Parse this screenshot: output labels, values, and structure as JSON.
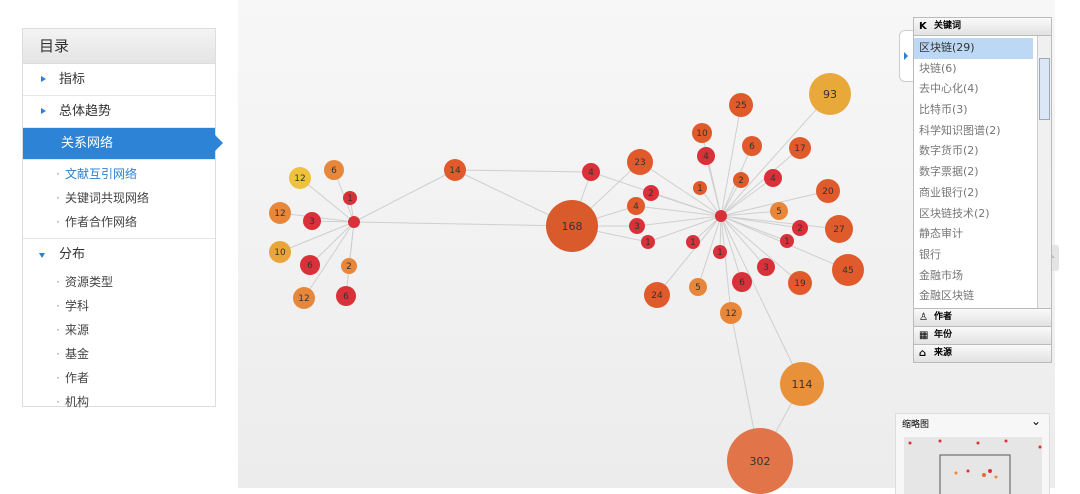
{
  "sidebar": {
    "title": "目录",
    "items": [
      {
        "label": "指标"
      },
      {
        "label": "总体趋势"
      },
      {
        "label": "关系网络",
        "children": [
          "文献互引网络",
          "关键词共现网络",
          "作者合作网络"
        ]
      },
      {
        "label": "分布",
        "children": [
          "资源类型",
          "学科",
          "来源",
          "基金",
          "作者",
          "机构"
        ]
      }
    ]
  },
  "network": {
    "nodes": [
      12,
      6,
      1,
      12,
      3,
      10,
      6,
      2,
      12,
      6,
      14,
      168,
      4,
      23,
      2,
      4,
      3,
      1,
      10,
      4,
      25,
      93,
      6,
      17,
      1,
      2,
      4,
      20,
      5,
      2,
      27,
      1,
      45,
      1,
      1,
      3,
      19,
      6,
      5,
      24,
      12,
      114,
      302
    ]
  },
  "filter_panel": {
    "sections": [
      {
        "title": "关键词",
        "items": [
          "区块链(29)",
          "块链(6)",
          "去中心化(4)",
          "比特币(3)",
          "科学知识图谱(2)",
          "数字货币(2)",
          "数字票据(2)",
          "商业银行(2)",
          "区块链技术(2)",
          "静态审计",
          "银行",
          "金融市场",
          "金融区块链"
        ]
      },
      {
        "title": "作者"
      },
      {
        "title": "年份"
      },
      {
        "title": "来源"
      }
    ]
  },
  "minimap": {
    "title": "缩略图"
  }
}
